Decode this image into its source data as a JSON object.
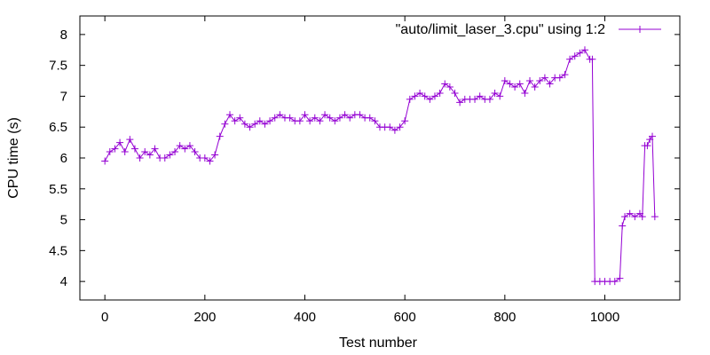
{
  "chart_data": {
    "type": "line",
    "title": "",
    "xlabel": "Test number",
    "ylabel": "CPU time (s)",
    "xlim": [
      -50,
      1150
    ],
    "ylim": [
      3.7,
      8.3
    ],
    "xticks": [
      0,
      200,
      400,
      600,
      800,
      1000
    ],
    "xtick_labels": [
      "0",
      "200",
      "400",
      "600",
      "800",
      "1000"
    ],
    "yticks": [
      4,
      4.5,
      5,
      5.5,
      6,
      6.5,
      7,
      7.5,
      8
    ],
    "ytick_labels": [
      "4",
      "4.5",
      "5",
      "5.5",
      "6",
      "6.5",
      "7",
      "7.5",
      "8"
    ],
    "legend_position": "top-right",
    "color": "#9400d3",
    "series": [
      {
        "name": "\"auto/limit_laser_3.cpu\" using 1:2",
        "marker": "plus",
        "x": [
          0,
          10,
          20,
          30,
          40,
          50,
          60,
          70,
          80,
          90,
          100,
          110,
          120,
          130,
          140,
          150,
          160,
          170,
          180,
          190,
          200,
          210,
          220,
          230,
          240,
          250,
          260,
          270,
          280,
          290,
          300,
          310,
          320,
          330,
          340,
          350,
          360,
          370,
          380,
          390,
          400,
          410,
          420,
          430,
          440,
          450,
          460,
          470,
          480,
          490,
          500,
          510,
          520,
          530,
          540,
          550,
          560,
          570,
          580,
          590,
          600,
          610,
          620,
          630,
          640,
          650,
          660,
          670,
          680,
          690,
          700,
          710,
          720,
          730,
          740,
          750,
          760,
          770,
          780,
          790,
          800,
          810,
          820,
          830,
          840,
          850,
          860,
          870,
          880,
          890,
          900,
          910,
          920,
          930,
          940,
          950,
          960,
          970,
          975,
          980,
          990,
          1000,
          1010,
          1020,
          1030,
          1035,
          1040,
          1050,
          1060,
          1070,
          1075,
          1080,
          1085,
          1090,
          1095,
          1100
        ],
        "y": [
          5.95,
          6.1,
          6.15,
          6.25,
          6.1,
          6.3,
          6.15,
          6.0,
          6.1,
          6.05,
          6.15,
          6.0,
          6.0,
          6.05,
          6.1,
          6.2,
          6.15,
          6.2,
          6.1,
          6.0,
          6.0,
          5.95,
          6.05,
          6.35,
          6.55,
          6.7,
          6.6,
          6.65,
          6.55,
          6.5,
          6.55,
          6.6,
          6.55,
          6.6,
          6.65,
          6.7,
          6.65,
          6.65,
          6.6,
          6.6,
          6.7,
          6.6,
          6.65,
          6.6,
          6.7,
          6.65,
          6.6,
          6.65,
          6.7,
          6.65,
          6.7,
          6.7,
          6.65,
          6.65,
          6.6,
          6.5,
          6.5,
          6.5,
          6.45,
          6.5,
          6.6,
          6.95,
          7.0,
          7.05,
          7.0,
          6.95,
          7.0,
          7.05,
          7.2,
          7.15,
          7.05,
          6.9,
          6.95,
          6.95,
          6.95,
          7.0,
          6.95,
          6.95,
          7.05,
          7.0,
          7.25,
          7.2,
          7.15,
          7.2,
          7.05,
          7.25,
          7.15,
          7.25,
          7.3,
          7.2,
          7.3,
          7.3,
          7.35,
          7.6,
          7.65,
          7.7,
          7.75,
          7.6,
          7.6,
          4.0,
          4.0,
          4.0,
          4.0,
          4.0,
          4.05,
          4.9,
          5.05,
          5.1,
          5.05,
          5.1,
          5.05,
          6.2,
          6.2,
          6.3,
          6.35,
          5.05
        ]
      }
    ]
  }
}
